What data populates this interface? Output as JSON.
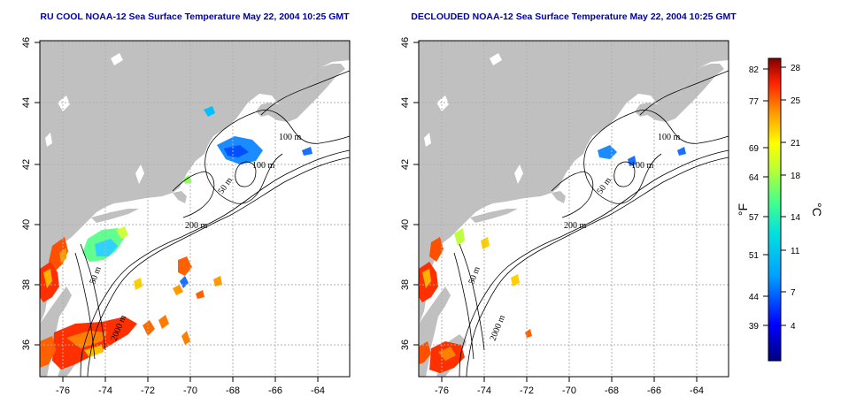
{
  "panels": [
    {
      "id": "left",
      "title": "RU COOL NOAA-12 Sea Surface Temperature May 22, 2004 10:25 GMT",
      "x_ticks": [
        "-76",
        "-74",
        "-72",
        "-70",
        "-68",
        "-66",
        "-64"
      ],
      "y_ticks": [
        "46",
        "44",
        "42",
        "40",
        "38",
        "36"
      ],
      "contour_labels": [
        "100 m",
        "100 m",
        "50 m",
        "200 m",
        "50 m",
        "2000 m"
      ]
    },
    {
      "id": "right",
      "title": "DECLOUDED NOAA-12 Sea Surface Temperature May 22, 2004 10:25 GMT",
      "x_ticks": [
        "-76",
        "-74",
        "-72",
        "-70",
        "-68",
        "-66",
        "-64"
      ],
      "y_ticks": [
        "46",
        "44",
        "42",
        "40",
        "38",
        "36"
      ],
      "contour_labels": [
        "100 m",
        "100 m",
        "50 m",
        "200 m",
        "50 m",
        "2000 m"
      ]
    }
  ],
  "colorbar": {
    "fahrenheit_ticks": [
      "82",
      "77",
      "69",
      "64",
      "57",
      "51",
      "44",
      "39"
    ],
    "celsius_ticks": [
      "28",
      "25",
      "21",
      "18",
      "14",
      "11",
      "7",
      "4"
    ],
    "fahrenheit_unit": "°F",
    "celsius_unit": "°C"
  },
  "colors": {
    "land": "#c0c0c0",
    "ocean": "#ffffff",
    "title": "#0000aa",
    "grid": "#b0b0b0"
  }
}
